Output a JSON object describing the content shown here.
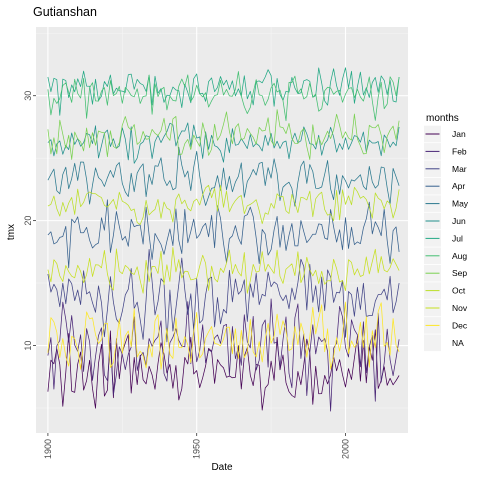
{
  "chart_data": {
    "type": "line",
    "title": "Gutianshan",
    "xlabel": "Date",
    "ylabel": "tmx",
    "x_ticks": [
      "1900",
      "1950",
      "2000"
    ],
    "y_ticks": [
      "10",
      "20",
      "30"
    ],
    "xlim": [
      1896,
      2021
    ],
    "ylim": [
      3.0,
      35.5
    ],
    "grid": true,
    "legend_position": "right",
    "legend_title": "months",
    "series": [
      {
        "name": "Jan",
        "color": "#440154",
        "mean": 8.0,
        "amplitude": 1.8,
        "end_values": [
          7.2,
          7.6
        ]
      },
      {
        "name": "Feb",
        "color": "#482576",
        "mean": 9.8,
        "amplitude": 2.4,
        "end_values": [
          9.0,
          10.5
        ]
      },
      {
        "name": "Mar",
        "color": "#414487",
        "mean": 13.8,
        "amplitude": 1.9,
        "end_values": [
          13.5,
          15.0
        ]
      },
      {
        "name": "Apr",
        "color": "#35608D",
        "mean": 19.0,
        "amplitude": 1.5,
        "end_values": [
          19.5,
          17.5
        ]
      },
      {
        "name": "May",
        "color": "#2A788E",
        "mean": 23.3,
        "amplitude": 1.2,
        "end_values": [
          23.5,
          22.8
        ]
      },
      {
        "name": "Jun",
        "color": "#21908C",
        "mean": 26.3,
        "amplitude": 0.9,
        "end_values": [
          26.0,
          27.5
        ]
      },
      {
        "name": "Jul",
        "color": "#22A884",
        "mean": 30.6,
        "amplitude": 1.0,
        "end_values": [
          29.5,
          31.5
        ]
      },
      {
        "name": "Aug",
        "color": "#43BF71",
        "mean": 30.0,
        "amplitude": 1.0,
        "end_values": [
          30.0,
          31.5
        ]
      },
      {
        "name": "Sep",
        "color": "#7AD151",
        "mean": 26.8,
        "amplitude": 1.0,
        "end_values": [
          26.5,
          28.0
        ]
      },
      {
        "name": "Oct",
        "color": "#BBDF27",
        "mean": 21.3,
        "amplitude": 0.9,
        "end_values": [
          21.0,
          22.5
        ]
      },
      {
        "name": "Nov",
        "color": "#C7E020",
        "mean": 16.0,
        "amplitude": 1.1,
        "end_values": [
          16.5,
          16.0
        ]
      },
      {
        "name": "Dec",
        "color": "#FDE725",
        "mean": 10.5,
        "amplitude": 1.4,
        "end_values": [
          10.0,
          9.5
        ]
      },
      {
        "name": "NA",
        "color": "#7F7F7F",
        "mean": null,
        "amplitude": null,
        "end_values": []
      }
    ]
  }
}
